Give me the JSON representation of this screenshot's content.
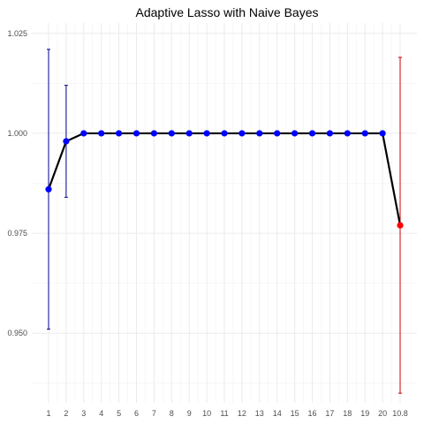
{
  "chart_data": {
    "type": "line",
    "title": "Adaptive Lasso with Naive Bayes",
    "xlabel": "",
    "ylabel": "",
    "categories": [
      "1",
      "2",
      "3",
      "4",
      "5",
      "6",
      "7",
      "8",
      "9",
      "10",
      "11",
      "12",
      "13",
      "14",
      "15",
      "16",
      "17",
      "18",
      "19",
      "20",
      "10.8"
    ],
    "series": [
      {
        "values": [
          0.986,
          0.998,
          1.0,
          1.0,
          1.0,
          1.0,
          1.0,
          1.0,
          1.0,
          1.0,
          1.0,
          1.0,
          1.0,
          1.0,
          1.0,
          1.0,
          1.0,
          1.0,
          1.0,
          1.0,
          0.977
        ],
        "lower": [
          0.951,
          0.984,
          1.0,
          1.0,
          1.0,
          1.0,
          1.0,
          1.0,
          1.0,
          1.0,
          1.0,
          1.0,
          1.0,
          1.0,
          1.0,
          1.0,
          1.0,
          1.0,
          1.0,
          1.0,
          0.935
        ],
        "upper": [
          1.021,
          1.012,
          1.0,
          1.0,
          1.0,
          1.0,
          1.0,
          1.0,
          1.0,
          1.0,
          1.0,
          1.0,
          1.0,
          1.0,
          1.0,
          1.0,
          1.0,
          1.0,
          1.0,
          1.0,
          1.019
        ]
      }
    ],
    "point_colors": [
      "#0000ff",
      "#0000ff",
      "#0000ff",
      "#0000ff",
      "#0000ff",
      "#0000ff",
      "#0000ff",
      "#0000ff",
      "#0000ff",
      "#0000ff",
      "#0000ff",
      "#0000ff",
      "#0000ff",
      "#0000ff",
      "#0000ff",
      "#0000ff",
      "#0000ff",
      "#0000ff",
      "#0000ff",
      "#0000ff",
      "#ff0000"
    ],
    "errorbar_colors": [
      "#00008b",
      "#00008b",
      "#00008b",
      "#00008b",
      "#00008b",
      "#00008b",
      "#00008b",
      "#00008b",
      "#00008b",
      "#00008b",
      "#00008b",
      "#00008b",
      "#00008b",
      "#00008b",
      "#00008b",
      "#00008b",
      "#00008b",
      "#00008b",
      "#00008b",
      "#00008b",
      "#cc0000"
    ],
    "line_color": "#000000",
    "yticks": [
      0.95,
      0.975,
      1.0,
      1.025
    ],
    "ytick_labels": [
      "0.950",
      "0.975",
      "1.000",
      "1.025"
    ],
    "ylim": [
      0.9326,
      1.0276
    ],
    "grid": true,
    "legend": "none"
  }
}
